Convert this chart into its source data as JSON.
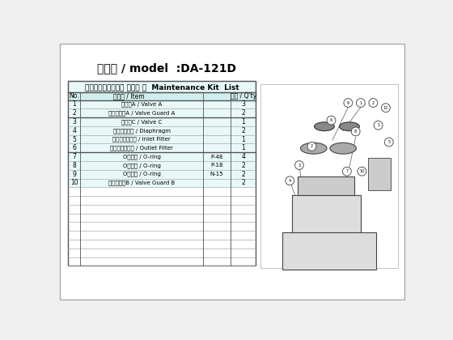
{
  "title": "機種名 / model  :DA-121D",
  "table_header": "メンテナンスキット リスト ／  Maintenance Kit  List",
  "col_no": "No.",
  "col_item_jp": "品品名 / Item",
  "col_qty": "数量 / Q'ty",
  "rows": [
    {
      "no": "1",
      "item": "バルブA / Valve A",
      "spec": "",
      "qty": "3"
    },
    {
      "no": "2",
      "item": "バルブ押えA / Valve Guard A",
      "spec": "",
      "qty": "2"
    },
    {
      "no": "3",
      "item": "バルブC / Valve C",
      "spec": "",
      "qty": "1"
    },
    {
      "no": "4",
      "item": "ダイアフラム / Diaphragm",
      "spec": "",
      "qty": "2"
    },
    {
      "no": "5",
      "item": "吸気フィルター / Inlet Filter",
      "spec": "",
      "qty": "1"
    },
    {
      "no": "6",
      "item": "排気フィルター / Outlet Filter",
      "spec": "",
      "qty": "1"
    },
    {
      "no": "7",
      "item": "Oリング / O-ring",
      "spec": "P-48",
      "qty": "4"
    },
    {
      "no": "8",
      "item": "Oリング / O-ring",
      "spec": "P-18",
      "qty": "2"
    },
    {
      "no": "9",
      "item": "Oリング / O-ring",
      "spec": "N-15",
      "qty": "2"
    },
    {
      "no": "10",
      "item": "バルブ押えB / Valve Guard B",
      "spec": "",
      "qty": "2"
    }
  ],
  "empty_rows": 9,
  "bg_color": "#e8f8f8",
  "subheader_bg": "#d0eeed",
  "border_dark": "#555555",
  "border_mid": "#666666",
  "border_light": "#aaaaaa",
  "page_bg": "#f0f0f0",
  "outer_bg": "#ffffff",
  "diag_bg": "#ffffff",
  "body_fill": "#dddddd",
  "part_fill": "#cccccc",
  "diap_fill": "#aaaaaa",
  "valve_fill": "#888888",
  "thick_after_rows": [
    1,
    5
  ]
}
